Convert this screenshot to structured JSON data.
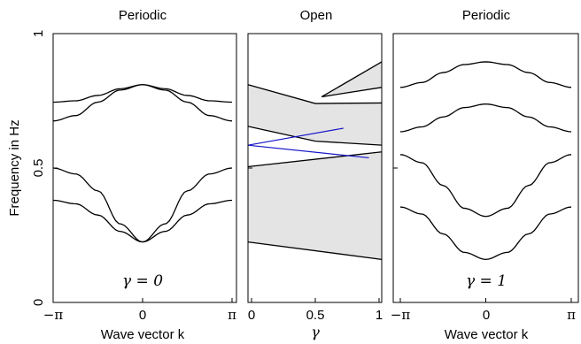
{
  "figure": {
    "ylabel": "Frequency in Hz",
    "ylim": [
      0,
      1
    ],
    "yticks": [
      "0",
      "0.5",
      "1"
    ]
  },
  "panels": [
    {
      "title": "Periodic",
      "xlabel": "Wave vector k",
      "xticks": [
        "−π",
        "0",
        "π"
      ],
      "annotation": "γ = 0"
    },
    {
      "title": "Open",
      "xlabel": "γ",
      "xticks": [
        "0",
        "0.5",
        "1"
      ],
      "annotation": ""
    },
    {
      "title": "Periodic",
      "xlabel": "Wave vector k",
      "xticks": [
        "−π",
        "0",
        "π"
      ],
      "annotation": "γ = 1"
    }
  ],
  "colors": {
    "bands": "#000000",
    "edge_states": "#1515c8",
    "shading": "#e4e4e4"
  },
  "chart_data": [
    {
      "type": "line",
      "title": "Periodic",
      "xlabel": "Wave vector k",
      "ylabel": "Frequency in Hz",
      "xlim": [
        -3.1416,
        3.1416
      ],
      "ylim": [
        0,
        1
      ],
      "series": [
        {
          "x": [
            -3.1416,
            -2.3562,
            -1.5708,
            -0.7854,
            0,
            0.7854,
            1.5708,
            2.3562,
            3.1416
          ],
          "y": [
            0.38,
            0.367,
            0.325,
            0.264,
            0.225,
            0.264,
            0.325,
            0.367,
            0.38
          ]
        },
        {
          "x": [
            -3.1416,
            -2.3562,
            -1.5708,
            -0.7854,
            0,
            0.7854,
            1.5708,
            2.3562,
            3.1416
          ],
          "y": [
            0.5,
            0.478,
            0.415,
            0.292,
            0.225,
            0.292,
            0.415,
            0.478,
            0.5
          ]
        },
        {
          "x": [
            -3.1416,
            -2.3562,
            -1.5708,
            -0.7854,
            0,
            0.7854,
            1.5708,
            2.3562,
            3.1416
          ],
          "y": [
            0.675,
            0.695,
            0.745,
            0.79,
            0.81,
            0.79,
            0.745,
            0.695,
            0.675
          ]
        },
        {
          "x": [
            -3.1416,
            -2.3562,
            -1.5708,
            -0.7854,
            0,
            0.7854,
            1.5708,
            2.3562,
            3.1416
          ],
          "y": [
            0.745,
            0.75,
            0.77,
            0.795,
            0.81,
            0.795,
            0.77,
            0.75,
            0.745
          ]
        }
      ]
    },
    {
      "type": "area",
      "title": "Open",
      "xlabel": "γ",
      "xlim": [
        0,
        1
      ],
      "ylim": [
        0,
        1
      ],
      "shaded_bands": [
        {
          "x": [
            0,
            1
          ],
          "lower": [
            0.225,
            0.16
          ],
          "upper": [
            0.505,
            0.56
          ]
        },
        {
          "x": [
            0,
            0.5,
            1
          ],
          "lower": [
            0.655,
            0.6,
            0.585
          ],
          "upper": [
            0.81,
            0.74,
            0.742
          ]
        },
        {
          "x": [
            0.55,
            1
          ],
          "lower": [
            0.765,
            0.8
          ],
          "upper": [
            0.765,
            0.895
          ]
        }
      ],
      "edge_states": [
        {
          "x": [
            0,
            0.72
          ],
          "y": [
            0.585,
            0.648
          ]
        },
        {
          "x": [
            0,
            0.92
          ],
          "y": [
            0.585,
            0.538
          ]
        }
      ]
    },
    {
      "type": "line",
      "title": "Periodic",
      "xlabel": "Wave vector k",
      "xlim": [
        -3.1416,
        3.1416
      ],
      "ylim": [
        0,
        1
      ],
      "series": [
        {
          "x": [
            -3.1416,
            -2.3562,
            -1.5708,
            -0.7854,
            0,
            0.7854,
            1.5708,
            2.3562,
            3.1416
          ],
          "y": [
            0.355,
            0.329,
            0.255,
            0.186,
            0.16,
            0.186,
            0.255,
            0.329,
            0.355
          ]
        },
        {
          "x": [
            -3.1416,
            -2.3562,
            -1.5708,
            -0.7854,
            0,
            0.7854,
            1.5708,
            2.3562,
            3.1416
          ],
          "y": [
            0.55,
            0.52,
            0.435,
            0.35,
            0.32,
            0.35,
            0.435,
            0.52,
            0.55
          ]
        },
        {
          "x": [
            -3.1416,
            -2.3562,
            -1.5708,
            -0.7854,
            0,
            0.7854,
            1.5708,
            2.3562,
            3.1416
          ],
          "y": [
            0.635,
            0.653,
            0.69,
            0.725,
            0.738,
            0.725,
            0.69,
            0.653,
            0.635
          ]
        },
        {
          "x": [
            -3.1416,
            -2.3562,
            -1.5708,
            -0.7854,
            0,
            0.7854,
            1.5708,
            2.3562,
            3.1416
          ],
          "y": [
            0.8,
            0.818,
            0.855,
            0.885,
            0.895,
            0.885,
            0.855,
            0.818,
            0.8
          ]
        }
      ]
    }
  ]
}
